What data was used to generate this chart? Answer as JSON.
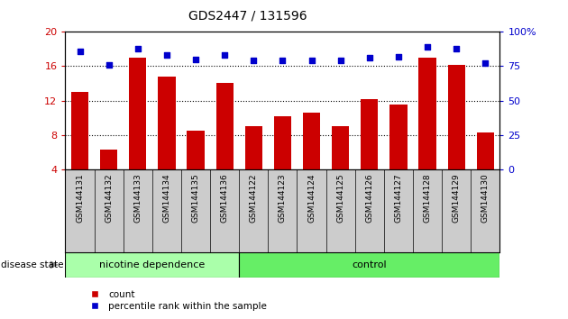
{
  "title": "GDS2447 / 131596",
  "categories": [
    "GSM144131",
    "GSM144132",
    "GSM144133",
    "GSM144134",
    "GSM144135",
    "GSM144136",
    "GSM144122",
    "GSM144123",
    "GSM144124",
    "GSM144125",
    "GSM144126",
    "GSM144127",
    "GSM144128",
    "GSM144129",
    "GSM144130"
  ],
  "count_values": [
    13.0,
    6.3,
    17.0,
    14.8,
    8.5,
    14.0,
    9.0,
    10.2,
    10.6,
    9.0,
    12.2,
    11.5,
    17.0,
    16.2,
    8.3
  ],
  "percentile_values": [
    86,
    76,
    88,
    83,
    80,
    83,
    79,
    79,
    79,
    79,
    81,
    82,
    89,
    88,
    77
  ],
  "ylim_left": [
    4,
    20
  ],
  "ylim_right": [
    0,
    100
  ],
  "yticks_left": [
    4,
    8,
    12,
    16,
    20
  ],
  "yticks_right": [
    0,
    25,
    50,
    75,
    100
  ],
  "bar_color": "#cc0000",
  "dot_color": "#0000cc",
  "n_nicotine": 6,
  "nicotine_label": "nicotine dependence",
  "control_label": "control",
  "disease_state_label": "disease state",
  "legend_count": "count",
  "legend_percentile": "percentile rank within the sample",
  "nicotine_color": "#aaffaa",
  "control_color": "#66ee66",
  "xtick_bg_color": "#cccccc",
  "tick_color_left": "#cc0000",
  "tick_color_right": "#0000cc"
}
